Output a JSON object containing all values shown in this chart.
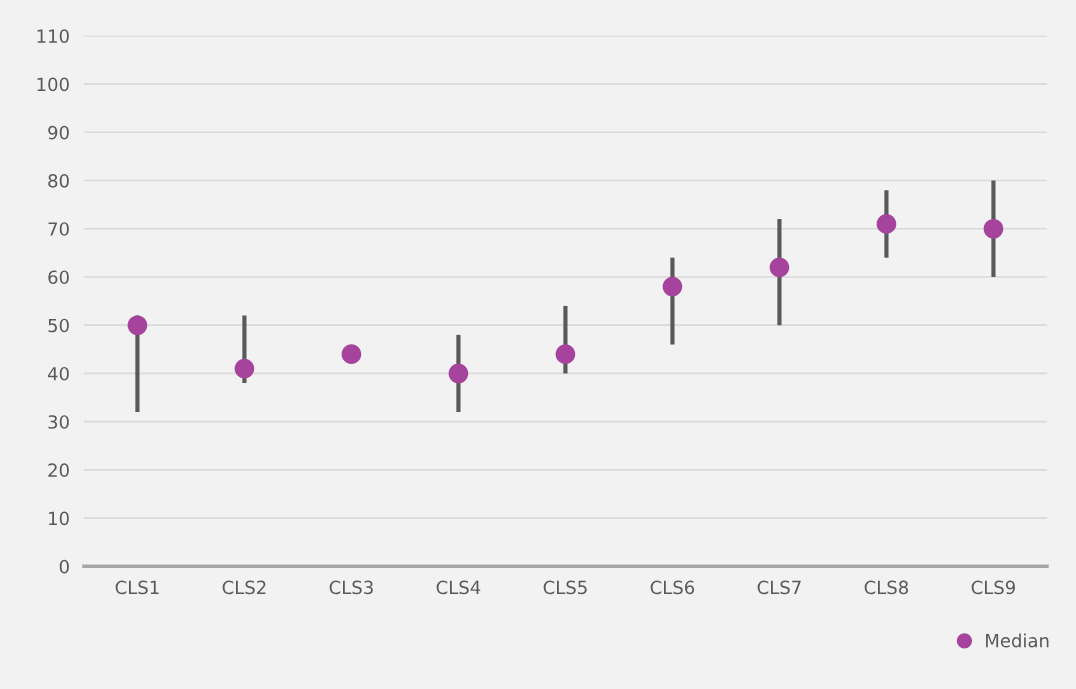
{
  "chart_data": {
    "type": "scatter",
    "categories": [
      "CLS1",
      "CLS2",
      "CLS3",
      "CLS4",
      "CLS5",
      "CLS6",
      "CLS7",
      "CLS8",
      "CLS9"
    ],
    "series": [
      {
        "name": "Median",
        "color": "#a6449d",
        "values": [
          50,
          41,
          44,
          40,
          44,
          58,
          62,
          71,
          70
        ],
        "errors": [
          [
            32,
            52
          ],
          [
            38,
            52
          ],
          null,
          [
            32,
            48
          ],
          [
            40,
            54
          ],
          [
            46,
            64
          ],
          [
            50,
            72
          ],
          [
            64,
            78
          ],
          [
            60,
            80
          ]
        ]
      }
    ],
    "ylim": [
      0,
      110
    ],
    "yticks": [
      0,
      10,
      20,
      30,
      40,
      50,
      60,
      70,
      80,
      90,
      100,
      110
    ],
    "grid": "y",
    "legend": "bottom right",
    "marker": "circle"
  }
}
